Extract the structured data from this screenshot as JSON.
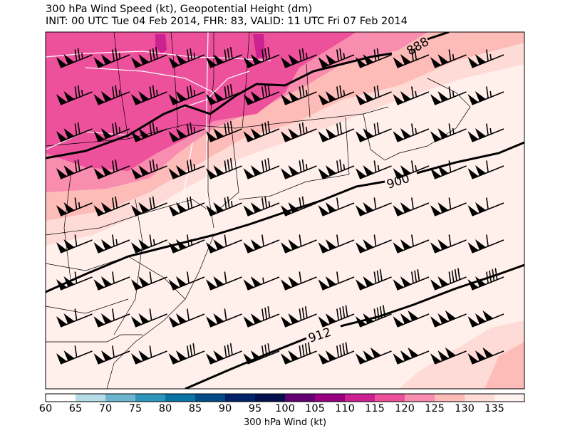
{
  "title": {
    "line1": "300 hPa Wind Speed (kt), Geopotential Height (dm)",
    "line2": "INIT: 00 UTC Tue 04 Feb 2014, FHR: 83, VALID: 11 UTC Fri 07 Feb 2014"
  },
  "contours": [
    {
      "label": "888"
    },
    {
      "label": "900"
    },
    {
      "label": "912"
    }
  ],
  "colorbar": {
    "label": "300 hPa Wind (kt)",
    "ticks": [
      "60",
      "65",
      "70",
      "75",
      "80",
      "85",
      "90",
      "95",
      "100",
      "105",
      "110",
      "115",
      "120",
      "125",
      "130",
      "135"
    ],
    "colors": [
      "#ffffff",
      "#b7dde8",
      "#6db6cf",
      "#2e96bb",
      "#0873a5",
      "#024b86",
      "#022368",
      "#02104e",
      "#650074",
      "#980080",
      "#cc2191",
      "#ee519c",
      "#f98db0",
      "#fdbcb8",
      "#fedbd7",
      "#fff2ee"
    ]
  },
  "wind_barbs_kt": [
    [
      125,
      125,
      130,
      125,
      130,
      130,
      125,
      125,
      120,
      120,
      115,
      115
    ],
    [
      125,
      125,
      125,
      125,
      130,
      130,
      125,
      125,
      120,
      115,
      115,
      115
    ],
    [
      120,
      125,
      125,
      125,
      130,
      130,
      125,
      120,
      120,
      115,
      115,
      115
    ],
    [
      120,
      120,
      125,
      125,
      130,
      130,
      125,
      125,
      115,
      115,
      110,
      110
    ],
    [
      115,
      120,
      120,
      120,
      125,
      125,
      120,
      110,
      110,
      110,
      110,
      110
    ],
    [
      110,
      115,
      115,
      115,
      110,
      110,
      110,
      110,
      110,
      110,
      110,
      110
    ],
    [
      110,
      110,
      110,
      110,
      110,
      105,
      110,
      110,
      130,
      130,
      140,
      140
    ],
    [
      110,
      110,
      110,
      110,
      110,
      130,
      130,
      140,
      140,
      150,
      150,
      150
    ],
    [
      110,
      110,
      110,
      130,
      130,
      130,
      140,
      140,
      150,
      150,
      150,
      150
    ]
  ]
}
